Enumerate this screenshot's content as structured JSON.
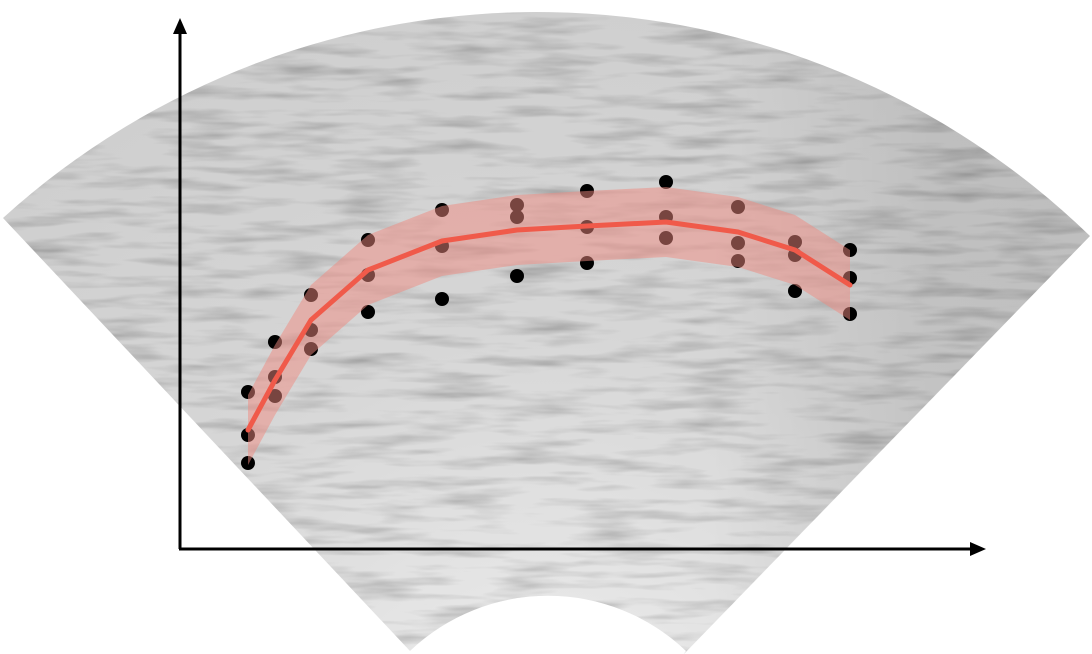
{
  "chart_data": {
    "type": "scatter",
    "xlim": [
      0,
      805
    ],
    "ylim": [
      0,
      531
    ],
    "points": {
      "color": "#000000",
      "x": [
        68,
        68,
        68,
        95,
        95,
        95,
        131,
        131,
        131,
        188,
        188,
        188,
        262,
        262,
        262,
        337,
        337,
        337,
        407,
        407,
        407,
        486,
        486,
        486,
        558,
        558,
        558,
        615,
        615,
        615,
        670,
        670,
        670
      ],
      "y": [
        86,
        114,
        157,
        153,
        172,
        207,
        200,
        219,
        254,
        237,
        274,
        309,
        250,
        303,
        339,
        273,
        332,
        344,
        286,
        322,
        358,
        311,
        332,
        367,
        288,
        306,
        342,
        258,
        294,
        307,
        235,
        271,
        299
      ]
    },
    "fit": {
      "color": "#f05a4a",
      "band_color": "#f08a80",
      "x": [
        68,
        95,
        131,
        188,
        262,
        337,
        407,
        486,
        558,
        615,
        670
      ],
      "values": [
        119,
        169,
        229,
        279,
        308,
        319,
        323,
        327,
        317,
        299,
        264
      ],
      "upper": [
        154,
        204,
        264,
        314,
        343,
        354,
        358,
        362,
        352,
        334,
        299
      ],
      "lower": [
        84,
        134,
        194,
        244,
        273,
        284,
        288,
        292,
        282,
        264,
        229
      ]
    }
  }
}
